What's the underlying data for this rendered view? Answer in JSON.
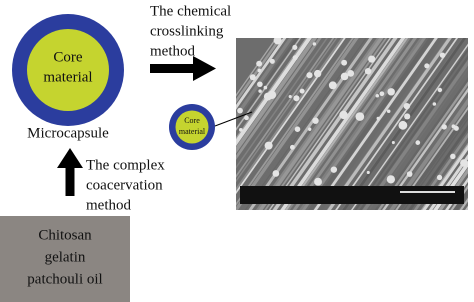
{
  "core_label": [
    "Core",
    "material"
  ],
  "microcapsule_label": "Microcapsule",
  "crosslinking_label": [
    "The chemical",
    "crosslinking",
    "method"
  ],
  "small_core_label": [
    "Core",
    "material"
  ],
  "coacervation_label": [
    "The complex",
    "coacervation",
    "method"
  ],
  "materials": [
    "Chitosan",
    "gelatin",
    "patchouli oil"
  ]
}
